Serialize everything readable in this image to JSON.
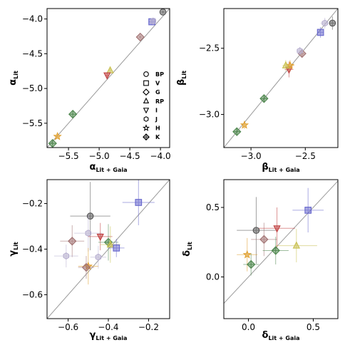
{
  "legend": {
    "entries": [
      {
        "label": "BP",
        "marker": "circle"
      },
      {
        "label": "V",
        "marker": "square"
      },
      {
        "label": "G",
        "marker": "diamond"
      },
      {
        "label": "RP",
        "marker": "triangle-up"
      },
      {
        "label": "I",
        "marker": "triangle-down"
      },
      {
        "label": "J",
        "marker": "hexagon"
      },
      {
        "label": "H",
        "marker": "star"
      },
      {
        "label": "K",
        "marker": "plus-diamond"
      }
    ]
  },
  "colors": {
    "BP": "#555555",
    "V": "#6666cc",
    "G": "#a07070",
    "RP": "#c8c050",
    "I": "#c04040",
    "J": "#b8b0d0",
    "H": "#e0a030",
    "K": "#508850",
    "identity_line": "#999999"
  },
  "chart_data": [
    {
      "id": "alpha",
      "type": "scatter",
      "xlabel": "α",
      "xlabel_sub": "Lit + Gaia",
      "ylabel": "α",
      "ylabel_sub": "Lit",
      "xlim": [
        -5.85,
        -3.85
      ],
      "ylim": [
        -5.85,
        -3.85
      ],
      "xticks": [
        -5.5,
        -5.0,
        -4.5,
        -4.0
      ],
      "xtick_labels": [
        "−5.5",
        "−5.0",
        "−4.5",
        "−4.0"
      ],
      "yticks": [
        -5.5,
        -5.0,
        -4.5,
        -4.0
      ],
      "ytick_labels": [
        "−5.5",
        "−5.0",
        "−4.5",
        "−4.0"
      ],
      "identity_line": true,
      "legend": "center-right",
      "points": [
        {
          "band": "BP",
          "x": -3.96,
          "y": -3.9,
          "xerr": 0.03,
          "yerr": 0.02
        },
        {
          "band": "V",
          "x": -4.14,
          "y": -4.04,
          "xerr": 0.05,
          "yerr": 0.04
        },
        {
          "band": "J",
          "x": -4.12,
          "y": -4.03,
          "xerr": 0.04,
          "yerr": 0.03
        },
        {
          "band": "G",
          "x": -4.33,
          "y": -4.26,
          "xerr": 0.02,
          "yerr": 0.02
        },
        {
          "band": "RP",
          "x": -4.82,
          "y": -4.74,
          "xerr": 0.03,
          "yerr": 0.03
        },
        {
          "band": "I",
          "x": -4.87,
          "y": -4.81,
          "xerr": 0.03,
          "yerr": 0.03
        },
        {
          "band": "K",
          "x": -5.43,
          "y": -5.37,
          "xerr": 0.02,
          "yerr": 0.02
        },
        {
          "band": "H",
          "x": -5.68,
          "y": -5.69,
          "xerr": 0.02,
          "yerr": 0.02
        },
        {
          "band": "K",
          "x": -5.76,
          "y": -5.79,
          "xerr": 0.02,
          "yerr": 0.02
        }
      ]
    },
    {
      "id": "beta",
      "type": "scatter",
      "xlabel": "β",
      "xlabel_sub": "Lit + Gaia",
      "ylabel": "β",
      "ylabel_sub": "Lit",
      "xlim": [
        -3.25,
        -2.2
      ],
      "ylim": [
        -3.25,
        -2.2
      ],
      "xticks": [
        -3.0,
        -2.5
      ],
      "xtick_labels": [
        "−3.0",
        "−2.5"
      ],
      "yticks": [
        -3.0,
        -2.5
      ],
      "ytick_labels": [
        "−3.0",
        "−2.5"
      ],
      "identity_line": true,
      "legend": "none",
      "points": [
        {
          "band": "BP",
          "x": -2.25,
          "y": -2.31,
          "xerr": 0.03,
          "yerr": 0.05
        },
        {
          "band": "J",
          "x": -2.32,
          "y": -2.31,
          "xerr": 0.04,
          "yerr": 0.04
        },
        {
          "band": "V",
          "x": -2.36,
          "y": -2.38,
          "xerr": 0.03,
          "yerr": 0.04
        },
        {
          "band": "G",
          "x": -2.53,
          "y": -2.54,
          "xerr": 0.02,
          "yerr": 0.03
        },
        {
          "band": "J",
          "x": -2.55,
          "y": -2.52,
          "xerr": 0.03,
          "yerr": 0.03
        },
        {
          "band": "I",
          "x": -2.65,
          "y": -2.66,
          "xerr": 0.04,
          "yerr": 0.06
        },
        {
          "band": "H",
          "x": -2.64,
          "y": -2.63,
          "xerr": 0.04,
          "yerr": 0.04
        },
        {
          "band": "RP",
          "x": -2.68,
          "y": -2.63,
          "xerr": 0.03,
          "yerr": 0.04
        },
        {
          "band": "K",
          "x": -2.88,
          "y": -2.88,
          "xerr": 0.02,
          "yerr": 0.03
        },
        {
          "band": "H",
          "x": -3.06,
          "y": -3.08,
          "xerr": 0.02,
          "yerr": 0.03
        },
        {
          "band": "K",
          "x": -3.13,
          "y": -3.13,
          "xerr": 0.02,
          "yerr": 0.03
        }
      ]
    },
    {
      "id": "gamma",
      "type": "scatter",
      "xlabel": "γ",
      "xlabel_sub": "Lit + Gaia",
      "ylabel": "γ",
      "ylabel_sub": "Lit",
      "xlim": [
        -0.705,
        -0.095
      ],
      "ylim": [
        -0.705,
        -0.095
      ],
      "xticks": [
        -0.6,
        -0.4,
        -0.2
      ],
      "xtick_labels": [
        "−0.6",
        "−0.4",
        "−0.2"
      ],
      "yticks": [
        -0.6,
        -0.4,
        -0.2
      ],
      "ytick_labels": [
        "−0.6",
        "−0.4",
        "−0.2"
      ],
      "identity_line": true,
      "legend": "none",
      "points": [
        {
          "band": "BP",
          "x": -0.49,
          "y": -0.255,
          "xerr": 0.1,
          "yerr": 0.15
        },
        {
          "band": "V",
          "x": -0.25,
          "y": -0.195,
          "xerr": 0.08,
          "yerr": 0.1
        },
        {
          "band": "J",
          "x": -0.5,
          "y": -0.33,
          "xerr": 0.07,
          "yerr": 0.08
        },
        {
          "band": "G",
          "x": -0.58,
          "y": -0.365,
          "xerr": 0.06,
          "yerr": 0.07
        },
        {
          "band": "I",
          "x": -0.44,
          "y": -0.345,
          "xerr": 0.06,
          "yerr": 0.06
        },
        {
          "band": "K",
          "x": -0.4,
          "y": -0.37,
          "xerr": 0.05,
          "yerr": 0.08
        },
        {
          "band": "RP",
          "x": -0.39,
          "y": -0.38,
          "xerr": 0.05,
          "yerr": 0.08
        },
        {
          "band": "V",
          "x": -0.36,
          "y": -0.395,
          "xerr": 0.04,
          "yerr": 0.04
        },
        {
          "band": "J",
          "x": -0.61,
          "y": -0.43,
          "xerr": 0.06,
          "yerr": 0.05
        },
        {
          "band": "J",
          "x": -0.45,
          "y": -0.435,
          "xerr": 0.04,
          "yerr": 0.05
        },
        {
          "band": "H",
          "x": -0.5,
          "y": -0.475,
          "xerr": 0.05,
          "yerr": 0.08
        },
        {
          "band": "G",
          "x": -0.51,
          "y": -0.48,
          "xerr": 0.04,
          "yerr": 0.05
        }
      ]
    },
    {
      "id": "delta",
      "type": "scatter",
      "xlabel": "δ",
      "xlabel_sub": "Lit + Gaia",
      "ylabel": "δ",
      "ylabel_sub": "Lit",
      "xlim": [
        -0.19,
        0.69
      ],
      "ylim": [
        -0.3,
        0.7
      ],
      "xticks": [
        0.0,
        0.5
      ],
      "xtick_labels": [
        "0.0",
        "0.5"
      ],
      "yticks": [
        0.0,
        0.5
      ],
      "ytick_labels": [
        "0.0",
        "0.5"
      ],
      "identity_line": true,
      "legend": "none",
      "points": [
        {
          "band": "BP",
          "x": 0.06,
          "y": 0.335,
          "xerr": 0.15,
          "yerr": 0.24
        },
        {
          "band": "V",
          "x": 0.46,
          "y": 0.48,
          "xerr": 0.12,
          "yerr": 0.16
        },
        {
          "band": "G",
          "x": 0.12,
          "y": 0.27,
          "xerr": 0.1,
          "yerr": 0.12
        },
        {
          "band": "I",
          "x": 0.22,
          "y": 0.35,
          "xerr": 0.14,
          "yerr": 0.15
        },
        {
          "band": "RP",
          "x": 0.37,
          "y": 0.225,
          "xerr": 0.16,
          "yerr": 0.12
        },
        {
          "band": "K",
          "x": 0.21,
          "y": 0.19,
          "xerr": 0.1,
          "yerr": 0.1
        },
        {
          "band": "H",
          "x": -0.01,
          "y": 0.16,
          "xerr": 0.08,
          "yerr": 0.12
        },
        {
          "band": "K",
          "x": 0.02,
          "y": 0.09,
          "xerr": 0.06,
          "yerr": 0.08
        }
      ]
    }
  ]
}
